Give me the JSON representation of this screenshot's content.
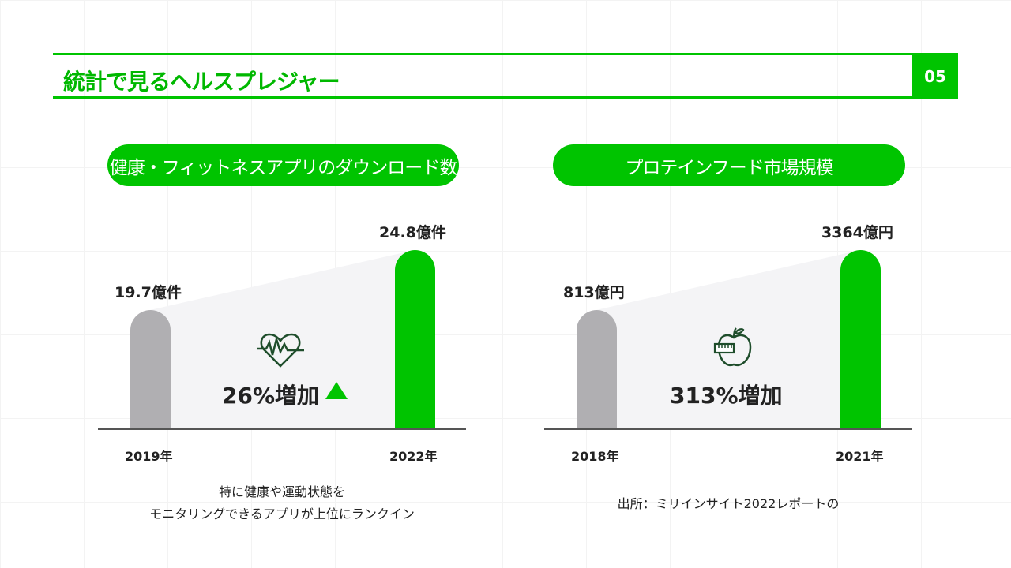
{
  "header": {
    "title": "統計で見るヘルスプレジャー",
    "page_number": "05"
  },
  "chart_data": [
    {
      "type": "bar",
      "title": "健康・フィットネスアプリのダウンロード数",
      "categories": [
        "2019年",
        "2022年"
      ],
      "values": [
        19.7,
        24.8
      ],
      "unit": "億件",
      "value_labels": [
        "19.7億件",
        "24.8億件"
      ],
      "annotation": "26%増加",
      "colors": [
        "#b0afb2",
        "#00c400"
      ]
    },
    {
      "type": "bar",
      "title": "プロテインフード市場規模",
      "categories": [
        "2018年",
        "2021年"
      ],
      "values": [
        813,
        3364
      ],
      "unit": "億円",
      "value_labels": [
        "813億円",
        "3364億円"
      ],
      "annotation": "313%増加",
      "colors": [
        "#b0afb2",
        "#00c400"
      ]
    }
  ],
  "notes": {
    "left_line1": "特に健康や運動状態を",
    "left_line2": "モニタリングできるアプリが上位にランクイン",
    "right": "出所：ミリインサイト2022レポートの"
  }
}
